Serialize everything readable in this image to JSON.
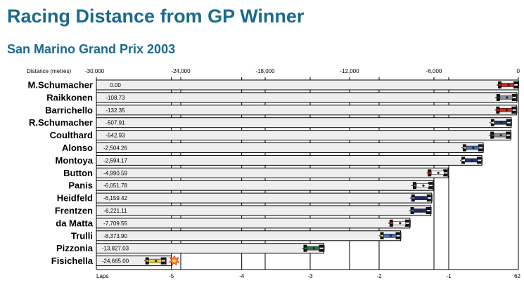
{
  "title": "Racing Distance from GP Winner",
  "subtitle": "San Marino Grand Prix 2003",
  "colors": {
    "title": "#1a6a8e",
    "bar_fill": "#eeeeee",
    "bar_stroke": "#000000"
  },
  "chart_data": {
    "type": "bar",
    "orientation": "horizontal",
    "xlabel": "Distance (metres)",
    "xlim": [
      -30000,
      0
    ],
    "top_ticks": [
      {
        "value": -30000,
        "label": "-30,000"
      },
      {
        "value": -24000,
        "label": "-24,000"
      },
      {
        "value": -18000,
        "label": "-18,000"
      },
      {
        "value": -12000,
        "label": "-12,000"
      },
      {
        "value": -6000,
        "label": "-6,000"
      },
      {
        "value": 0,
        "label": "0"
      }
    ],
    "laps_axis_label": "Laps",
    "lap_ticks": [
      {
        "value": -24665,
        "label": "-5"
      },
      {
        "value": -19667,
        "label": "-4"
      },
      {
        "value": -14800,
        "label": "-3"
      },
      {
        "value": -9900,
        "label": "-2"
      },
      {
        "value": -4950,
        "label": "-1"
      },
      {
        "value": 0,
        "label": "62"
      }
    ],
    "gridlines": [
      -24665,
      -24000,
      -19667,
      -18000,
      -14800,
      -12000,
      -9900,
      -6000,
      -4950
    ],
    "drivers": [
      {
        "name": "M.Schumacher",
        "value": 0.0,
        "label": "0.00",
        "car": "ferrari"
      },
      {
        "name": "Raikkonen",
        "value": -108.73,
        "label": "-108.73",
        "car": "mclaren"
      },
      {
        "name": "Barrichello",
        "value": -132.35,
        "label": "-132.35",
        "car": "ferrari"
      },
      {
        "name": "R.Schumacher",
        "value": -507.91,
        "label": "-507.91",
        "car": "williams"
      },
      {
        "name": "Coulthard",
        "value": -542.93,
        "label": "-542.93",
        "car": "mclaren"
      },
      {
        "name": "Alonso",
        "value": -2504.26,
        "label": "-2,504.26",
        "car": "renault"
      },
      {
        "name": "Montoya",
        "value": -2594.17,
        "label": "-2,594.17",
        "car": "williams"
      },
      {
        "name": "Button",
        "value": -4990.59,
        "label": "-4,990.59",
        "car": "bar"
      },
      {
        "name": "Panis",
        "value": -6051.78,
        "label": "-6,051.78",
        "car": "toyota"
      },
      {
        "name": "Heidfeld",
        "value": -6159.42,
        "label": "-6,159.42",
        "car": "sauber"
      },
      {
        "name": "Frentzen",
        "value": -6221.11,
        "label": "-6,221.11",
        "car": "sauber"
      },
      {
        "name": "da Matta",
        "value": -7709.55,
        "label": "-7,709.55",
        "car": "toyota"
      },
      {
        "name": "Trulli",
        "value": -8373.9,
        "label": "-8,373.90",
        "car": "renault"
      },
      {
        "name": "Pizzonia",
        "value": -13827.03,
        "label": "-13,827.03",
        "car": "jaguar"
      },
      {
        "name": "Fisichella",
        "value": -24665.0,
        "label": "-24,665.00",
        "car": "jordan",
        "retired": true
      }
    ]
  }
}
